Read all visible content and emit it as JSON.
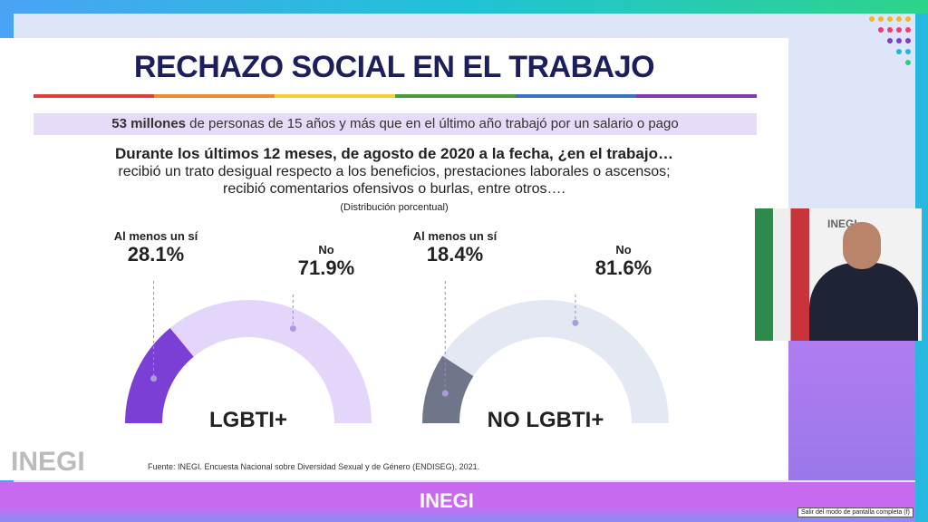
{
  "title": "RECHAZO SOCIAL EN EL TRABAJO",
  "subtitle_bold": "53 millones",
  "subtitle_rest": " de personas de 15 años y más que en el último año trabajó por un salario o pago",
  "question_bold": "Durante los últimos 12 meses, de agosto de 2020 a la fecha, ¿en el trabajo…",
  "question_line2": "recibió un trato desigual respecto a los beneficios, prestaciones laborales o ascensos;",
  "question_line3": "recibió comentarios ofensivos o burlas, entre otros….",
  "question_note": "(Distribución porcentual)",
  "gauges": [
    {
      "name": "LGBTI+",
      "yes_label": "Al menos un sí",
      "yes_pct": "28.1%",
      "yes_value": 28.1,
      "no_label": "No",
      "no_pct": "71.9%",
      "fill": "#7b3fd6",
      "track": "#e3d6fa"
    },
    {
      "name": "NO LGBTI+",
      "yes_label": "Al menos un sí",
      "yes_pct": "18.4%",
      "yes_value": 18.4,
      "no_label": "No",
      "no_pct": "81.6%",
      "fill": "#6f7689",
      "track": "#e4e8f2"
    }
  ],
  "source": "Fuente:  INEGI. Encuesta Nacional sobre Diversidad Sexual y de Género (ENDISEG), 2021.",
  "logo": "INEGI",
  "video_logo": "INEGI",
  "tooltip": "Salir del modo de pantalla completa (f)"
}
